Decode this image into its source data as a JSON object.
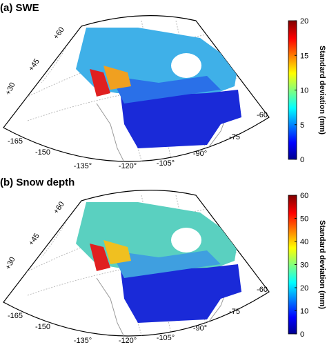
{
  "panels": [
    {
      "title": "(a) SWE",
      "colorbar": {
        "label": "Standard deviation (mm)",
        "lim": [
          0,
          20
        ],
        "ticks": [
          0,
          5,
          10,
          15,
          20
        ]
      },
      "lat_labels": [
        "+60",
        "+45",
        "+30"
      ],
      "lon_labels": [
        "-165",
        "-150",
        "-135°",
        "-120°",
        "-105°",
        "-90°",
        "-75",
        "-60"
      ]
    },
    {
      "title": "(b) Snow depth",
      "colorbar": {
        "label": "Standard deviation (mm)",
        "lim": [
          0,
          60
        ],
        "ticks": [
          0,
          10,
          20,
          30,
          40,
          50,
          60
        ]
      },
      "lat_labels": [
        "+60",
        "+45",
        "+30"
      ],
      "lon_labels": [
        "-165",
        "-150",
        "-135°",
        "-120°",
        "-105°",
        "-90°",
        "-75",
        "-60"
      ]
    }
  ]
}
